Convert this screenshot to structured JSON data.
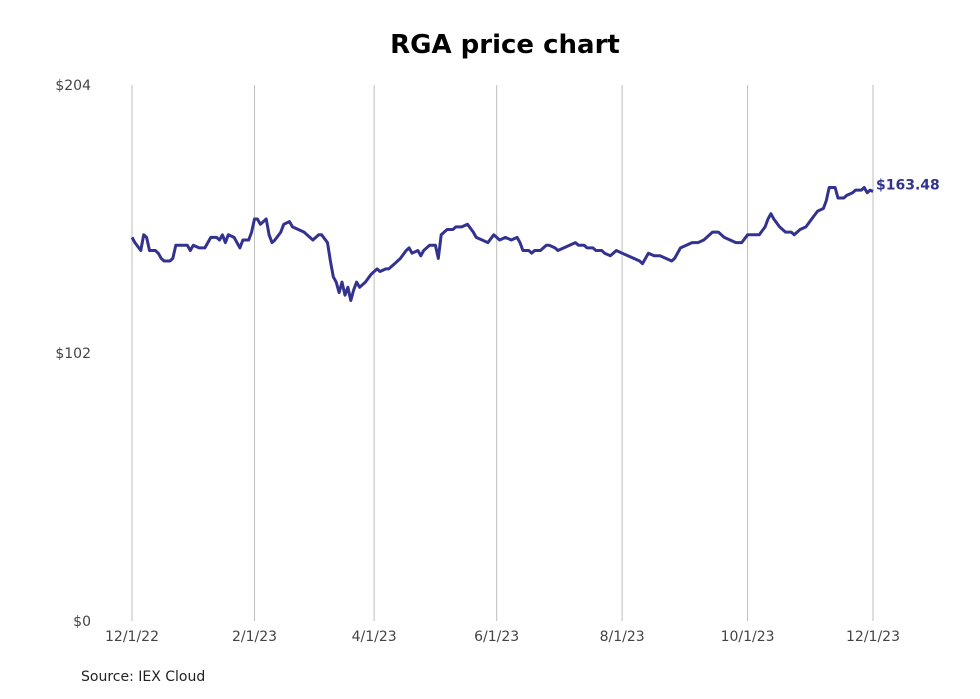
{
  "chart_data": {
    "type": "line",
    "title": "RGA price chart",
    "source": "Source: IEX Cloud",
    "series": [
      {
        "color": "#33338f",
        "values": [
          [
            0,
            146
          ],
          [
            1,
            144
          ],
          [
            3,
            141
          ],
          [
            4,
            147
          ],
          [
            5,
            146
          ],
          [
            6,
            141
          ],
          [
            8,
            141
          ],
          [
            9,
            140
          ],
          [
            10,
            138
          ],
          [
            11,
            137
          ],
          [
            13,
            137
          ],
          [
            14,
            138
          ],
          [
            15,
            143
          ],
          [
            17,
            143
          ],
          [
            19,
            143
          ],
          [
            20,
            141
          ],
          [
            21,
            143
          ],
          [
            23,
            142
          ],
          [
            25,
            142
          ],
          [
            27,
            146
          ],
          [
            29,
            146
          ],
          [
            30,
            145
          ],
          [
            31,
            147
          ],
          [
            32,
            144
          ],
          [
            33,
            147
          ],
          [
            35,
            146
          ],
          [
            37,
            142
          ],
          [
            38,
            145
          ],
          [
            40,
            145
          ],
          [
            41,
            148
          ],
          [
            42,
            153
          ],
          [
            43,
            153
          ],
          [
            44,
            151
          ],
          [
            46,
            153
          ],
          [
            47,
            147
          ],
          [
            48,
            144
          ],
          [
            49,
            145
          ],
          [
            51,
            148
          ],
          [
            52,
            151
          ],
          [
            54,
            152
          ],
          [
            55,
            150
          ],
          [
            57,
            149
          ],
          [
            59,
            148
          ],
          [
            60,
            147
          ],
          [
            62,
            145
          ],
          [
            64,
            147
          ],
          [
            65,
            147
          ],
          [
            67,
            144
          ],
          [
            68,
            137
          ],
          [
            69,
            131
          ],
          [
            70,
            129
          ],
          [
            71,
            125
          ],
          [
            72,
            129
          ],
          [
            73,
            124
          ],
          [
            74,
            127
          ],
          [
            75,
            122
          ],
          [
            76,
            126
          ],
          [
            77,
            129
          ],
          [
            78,
            127
          ],
          [
            80,
            129
          ],
          [
            82,
            132
          ],
          [
            84,
            134
          ],
          [
            85,
            133
          ],
          [
            87,
            134
          ],
          [
            88,
            134
          ],
          [
            90,
            136
          ],
          [
            92,
            138
          ],
          [
            94,
            141
          ],
          [
            95,
            142
          ],
          [
            96,
            140
          ],
          [
            98,
            141
          ],
          [
            99,
            139
          ],
          [
            100,
            141
          ],
          [
            102,
            143
          ],
          [
            104,
            143
          ],
          [
            105,
            138
          ],
          [
            106,
            147
          ],
          [
            108,
            149
          ],
          [
            110,
            149
          ],
          [
            111,
            150
          ],
          [
            113,
            150
          ],
          [
            115,
            151
          ],
          [
            117,
            148
          ],
          [
            118,
            146
          ],
          [
            120,
            145
          ],
          [
            122,
            144
          ],
          [
            124,
            147
          ],
          [
            125,
            146
          ],
          [
            126,
            145
          ],
          [
            128,
            146
          ],
          [
            130,
            145
          ],
          [
            132,
            146
          ],
          [
            133,
            144
          ],
          [
            134,
            141
          ],
          [
            136,
            141
          ],
          [
            137,
            140
          ],
          [
            138,
            141
          ],
          [
            140,
            141
          ],
          [
            142,
            143
          ],
          [
            143,
            143
          ],
          [
            145,
            142
          ],
          [
            146,
            141
          ],
          [
            148,
            142
          ],
          [
            150,
            143
          ],
          [
            152,
            144
          ],
          [
            153,
            143
          ],
          [
            155,
            143
          ],
          [
            156,
            142
          ],
          [
            158,
            142
          ],
          [
            159,
            141
          ],
          [
            161,
            141
          ],
          [
            162,
            140
          ],
          [
            164,
            139
          ],
          [
            166,
            141
          ],
          [
            168,
            140
          ],
          [
            170,
            139
          ],
          [
            172,
            138
          ],
          [
            174,
            137
          ],
          [
            175,
            136
          ],
          [
            177,
            140
          ],
          [
            179,
            139
          ],
          [
            181,
            139
          ],
          [
            183,
            138
          ],
          [
            185,
            137
          ],
          [
            186,
            138
          ],
          [
            188,
            142
          ],
          [
            190,
            143
          ],
          [
            192,
            144
          ],
          [
            194,
            144
          ],
          [
            196,
            145
          ],
          [
            198,
            147
          ],
          [
            199,
            148
          ],
          [
            201,
            148
          ],
          [
            203,
            146
          ],
          [
            205,
            145
          ],
          [
            207,
            144
          ],
          [
            209,
            144
          ],
          [
            211,
            147
          ],
          [
            213,
            147
          ],
          [
            215,
            147
          ],
          [
            217,
            150
          ],
          [
            218,
            153
          ],
          [
            219,
            155
          ],
          [
            220,
            153
          ],
          [
            222,
            150
          ],
          [
            224,
            148
          ],
          [
            226,
            148
          ],
          [
            227,
            147
          ],
          [
            229,
            149
          ],
          [
            231,
            150
          ],
          [
            233,
            153
          ],
          [
            235,
            156
          ],
          [
            237,
            157
          ],
          [
            238,
            160
          ],
          [
            239,
            165
          ],
          [
            241,
            165
          ],
          [
            242,
            161
          ],
          [
            244,
            161
          ],
          [
            245,
            162
          ],
          [
            247,
            163
          ],
          [
            248,
            164
          ],
          [
            250,
            164
          ],
          [
            251,
            165
          ],
          [
            252,
            163
          ],
          [
            253,
            164
          ],
          [
            254,
            163.48
          ]
        ]
      }
    ],
    "x_axis": {
      "tick_labels": [
        "12/1/22",
        "2/1/23",
        "4/1/23",
        "6/1/23",
        "8/1/23",
        "10/1/23",
        "12/1/23"
      ],
      "tick_values": [
        0,
        42,
        83,
        125,
        168,
        211,
        254
      ],
      "range": [
        0,
        254
      ],
      "vertical_gridlines": true
    },
    "y_axis": {
      "tick_labels": [
        "$204",
        "$102",
        "$0"
      ],
      "tick_values": [
        204,
        102,
        0
      ],
      "range": [
        0,
        204
      ],
      "horizontal_gridlines": false
    },
    "last_value_label": "$163.48"
  }
}
